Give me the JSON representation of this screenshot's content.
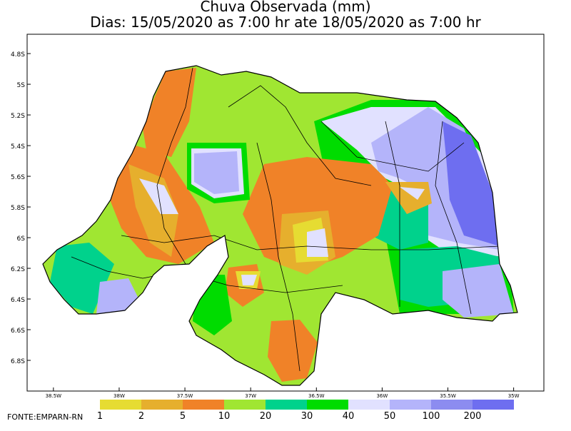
{
  "map": {
    "title": "Chuva Observada (mm)",
    "subtitle": "Dias: 15/05/2020 as 7:00 hr ate 18/05/2020 as 7:00 hr",
    "xlim": [
      -38.7,
      -34.77
    ],
    "ylim": [
      -7.0,
      -4.674
    ],
    "xticks": [
      {
        "value": -38.5,
        "label": "38.5W"
      },
      {
        "value": -38,
        "label": "38W"
      },
      {
        "value": -37.5,
        "label": "37.5W"
      },
      {
        "value": -37,
        "label": "37W"
      },
      {
        "value": -36.5,
        "label": "36.5W"
      },
      {
        "value": -36,
        "label": "36W"
      },
      {
        "value": -35.5,
        "label": "35.5W"
      },
      {
        "value": -35,
        "label": "35W"
      }
    ],
    "yticks": [
      {
        "value": -4.8,
        "label": "4.8S"
      },
      {
        "value": -5,
        "label": "5S"
      },
      {
        "value": -5.2,
        "label": "5.2S"
      },
      {
        "value": -5.4,
        "label": "5.4S"
      },
      {
        "value": -5.6,
        "label": "5.6S"
      },
      {
        "value": -5.8,
        "label": "5.8S"
      },
      {
        "value": -6,
        "label": "6S"
      },
      {
        "value": -6.2,
        "label": "6.2S"
      },
      {
        "value": -6.4,
        "label": "6.4S"
      },
      {
        "value": -6.6,
        "label": "6.6S"
      },
      {
        "value": -6.8,
        "label": "6.8S"
      }
    ],
    "legend": {
      "levels": [
        1,
        2,
        5,
        10,
        20,
        30,
        40,
        50,
        100,
        200
      ],
      "colors": [
        "#e6dc32",
        "#e6af2d",
        "#f08228",
        "#a0e632",
        "#00d28c",
        "#00dc00",
        "#e1e1ff",
        "#b4b4fa",
        "#8c8cf0",
        "#6e6ef0"
      ]
    },
    "source": "FONTE:EMPARN-RN"
  }
}
